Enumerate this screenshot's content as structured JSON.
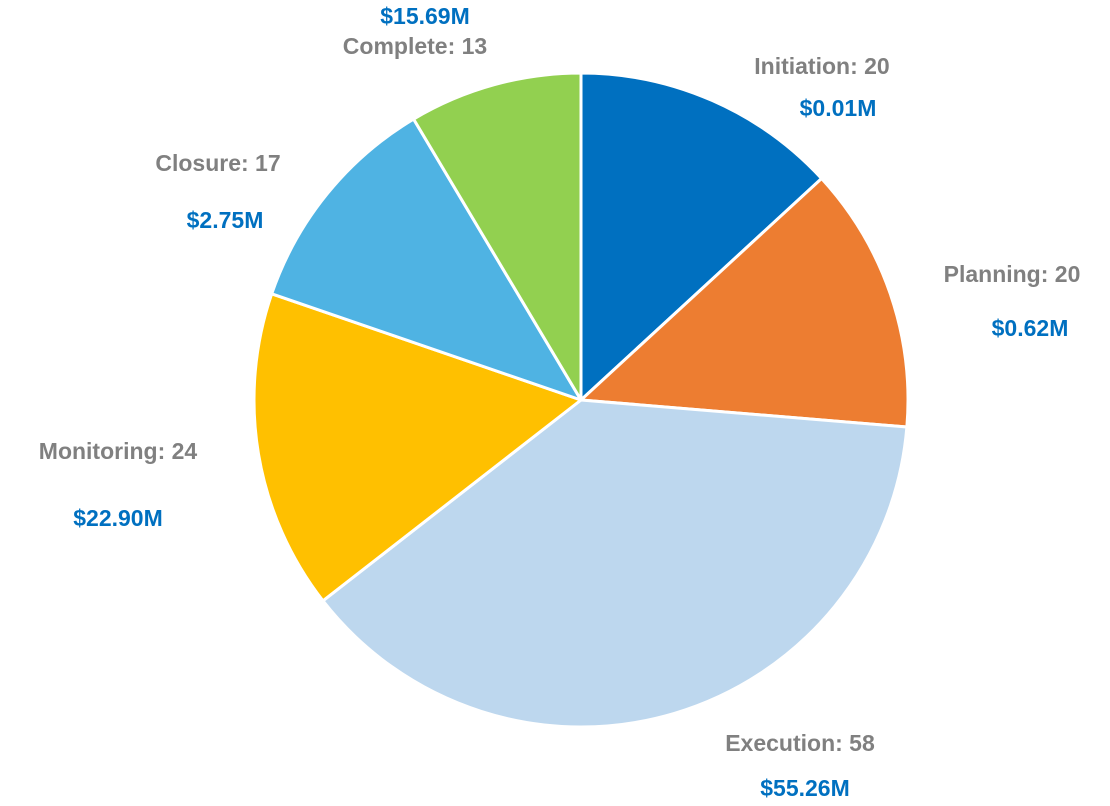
{
  "chart_data": {
    "type": "pie",
    "values": [
      20,
      20,
      58,
      24,
      17,
      13
    ],
    "value_labels": [
      "Initiation: 20",
      "Planning: 20",
      "Execution: 58",
      "Monitoring: 24",
      "Closure: 17",
      "Complete: 13"
    ],
    "amounts": [
      0.01,
      0.62,
      55.26,
      22.9,
      2.75,
      15.69
    ],
    "amount_labels": [
      "$0.01M",
      "$0.62M",
      "$55.26M",
      "$22.90M",
      "$2.75M",
      "$15.69M"
    ],
    "colors": [
      "#0070c0",
      "#ed7d31",
      "#bdd7ee",
      "#ffc000",
      "#4fb3e3",
      "#92d050"
    ]
  }
}
